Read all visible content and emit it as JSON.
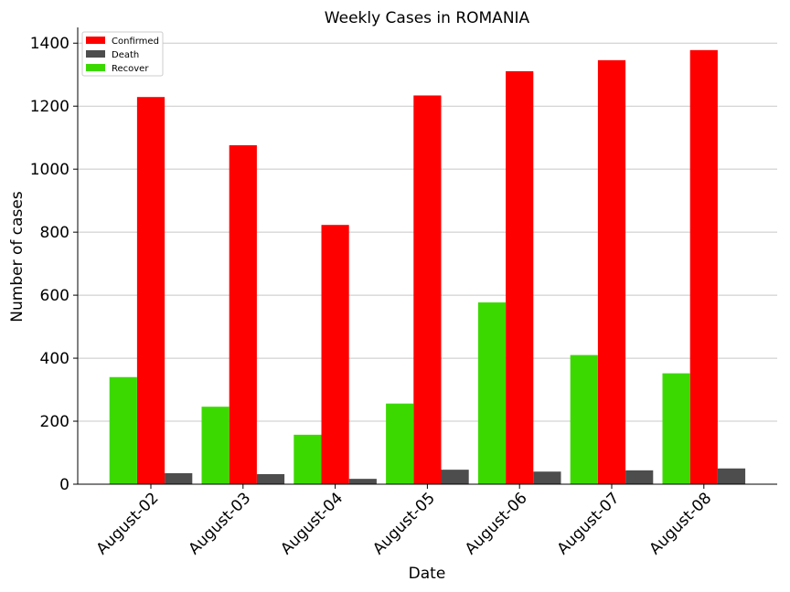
{
  "chart_data": {
    "type": "bar",
    "title": "Weekly Cases in ROMANIA",
    "xlabel": "Date",
    "ylabel": "Number of cases",
    "ylim": [
      0,
      1450
    ],
    "yticks": [
      0,
      200,
      400,
      600,
      800,
      1000,
      1200,
      1400
    ],
    "grid": "horizontal",
    "legend_position": "top-left",
    "categories": [
      "August-02",
      "August-03",
      "August-04",
      "August-05",
      "August-06",
      "August-07",
      "August-08"
    ],
    "series": [
      {
        "name": "Confirmed",
        "color": "#ff0000",
        "values": [
          1229,
          1076,
          823,
          1234,
          1311,
          1346,
          1378
        ]
      },
      {
        "name": "Death",
        "color": "#4d4d4d",
        "values": [
          35,
          32,
          17,
          46,
          40,
          44,
          50
        ]
      },
      {
        "name": "Recover",
        "color": "#3cd900",
        "values": [
          340,
          246,
          157,
          256,
          577,
          410,
          352
        ]
      }
    ]
  }
}
